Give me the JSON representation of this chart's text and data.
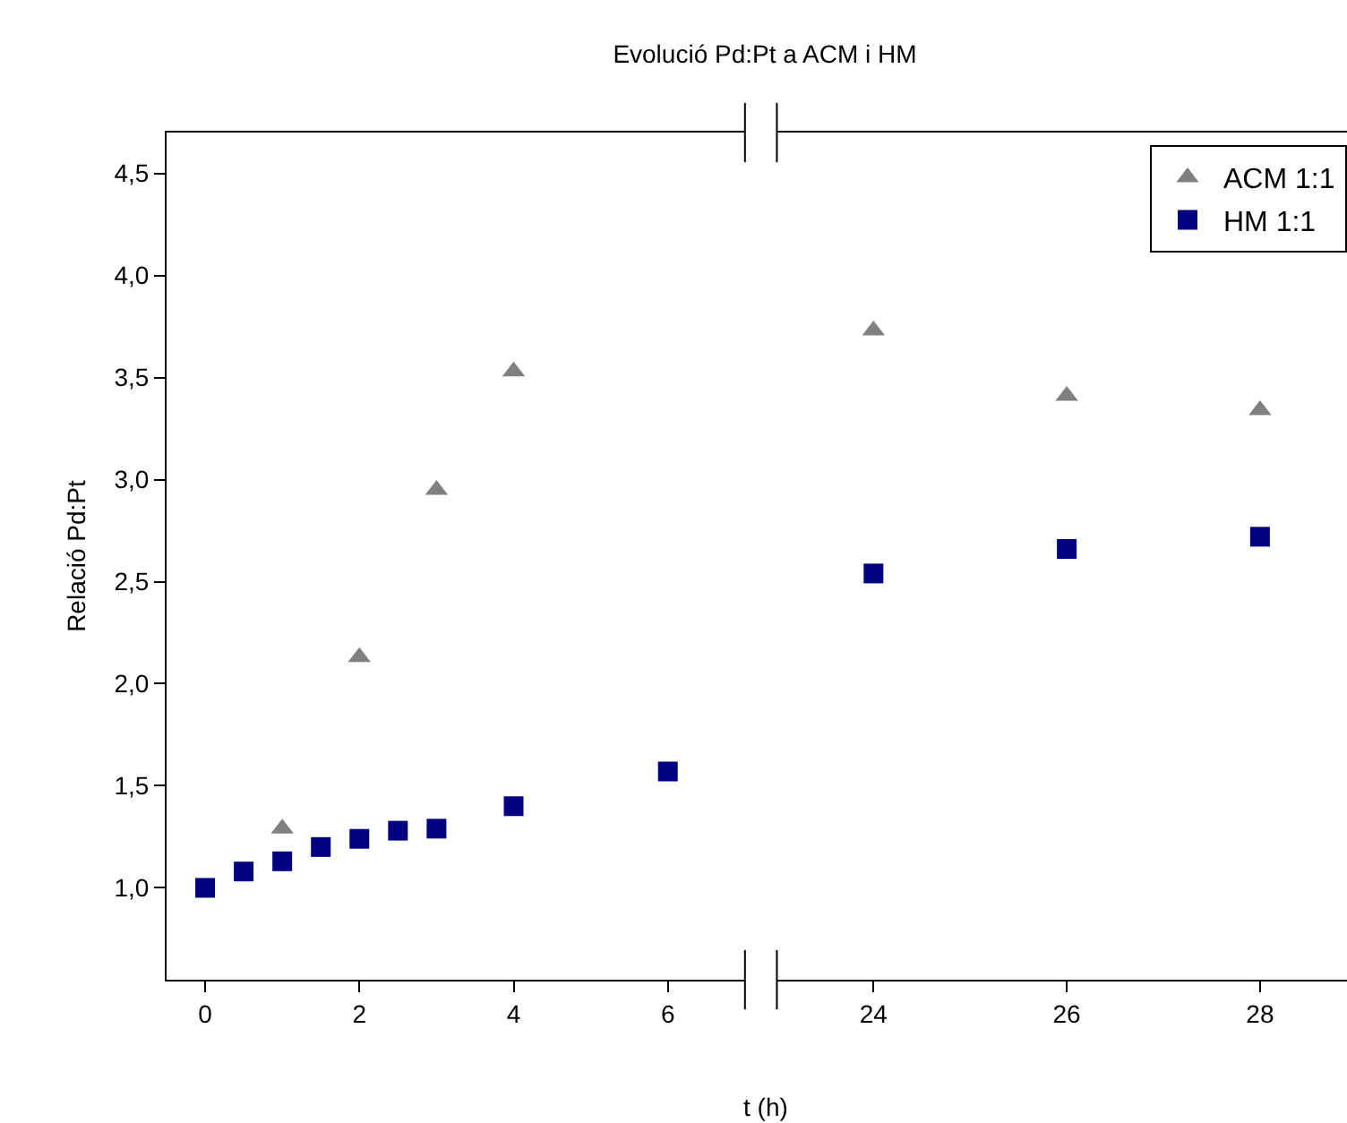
{
  "chart_data": [
    {
      "type": "scatter",
      "title": "Evolució Pd:Pt a ACM i HM",
      "ylabel": "Relació Pd:Pt",
      "xlim": [
        -0.5,
        7
      ],
      "xticks": [
        0,
        2,
        4,
        6
      ],
      "ylim": [
        0.55,
        4.7
      ],
      "yticks": [
        {
          "value": 1.0,
          "label": "1,0"
        },
        {
          "value": 1.5,
          "label": "1,5"
        },
        {
          "value": 2.0,
          "label": "2,0"
        },
        {
          "value": 2.5,
          "label": "2,5"
        },
        {
          "value": 3.0,
          "label": "3,0"
        },
        {
          "value": 3.5,
          "label": "3,5"
        },
        {
          "value": 4.0,
          "label": "4,0"
        },
        {
          "value": 4.5,
          "label": "4,5"
        }
      ],
      "legend": false,
      "series": [
        {
          "color": "#808080",
          "marker": "triangle",
          "x": [
            1,
            2,
            3,
            4
          ],
          "values": [
            1.29,
            2.13,
            2.95,
            3.53
          ]
        },
        {
          "color": "#000080",
          "marker": "square",
          "x": [
            0,
            0.5,
            1,
            1.5,
            2,
            2.5,
            3,
            4,
            6
          ],
          "values": [
            1.0,
            1.08,
            1.13,
            1.2,
            1.24,
            1.28,
            1.29,
            1.4,
            1.57
          ]
        }
      ]
    },
    {
      "type": "scatter",
      "xlabel": "t (h)",
      "xlim": [
        23,
        28.9
      ],
      "xticks": [
        24,
        26,
        28
      ],
      "ylim": [
        0.55,
        4.7
      ],
      "tick_labels": "x",
      "legend": "top right",
      "series": [
        {
          "name": "ACM 1:1",
          "color": "#808080",
          "marker": "triangle",
          "x": [
            24,
            26,
            28
          ],
          "values": [
            3.73,
            3.41,
            3.34
          ]
        },
        {
          "name": "HM 1:1",
          "color": "#000080",
          "marker": "square",
          "x": [
            24,
            26,
            28
          ],
          "values": [
            2.54,
            2.66,
            2.72
          ]
        }
      ]
    }
  ]
}
